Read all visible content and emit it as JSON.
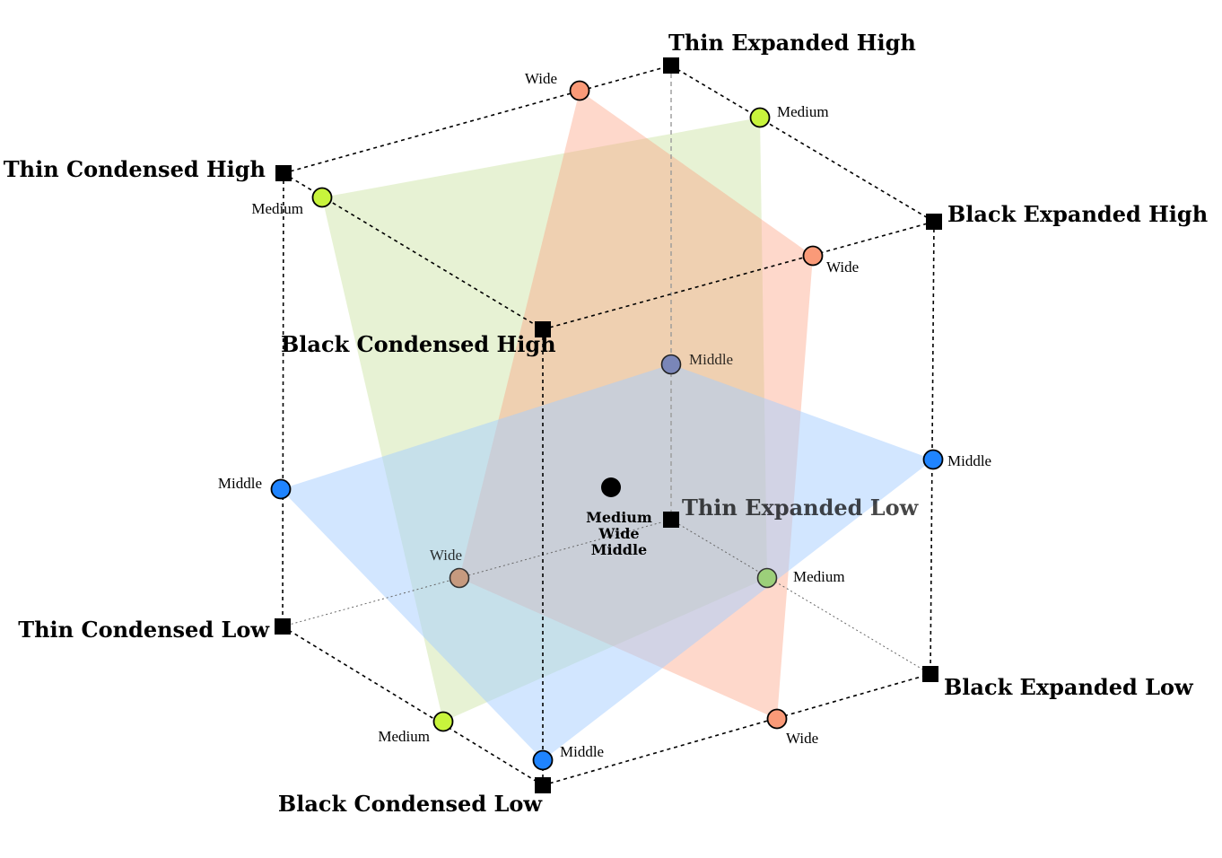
{
  "corners": {
    "thin_expanded_high": "Thin Expanded High",
    "thin_condensed_high": "Thin Condensed High",
    "black_expanded_high": "Black Expanded High",
    "black_condensed_high": "Black Condensed High",
    "thin_expanded_low": "Thin Expanded Low",
    "thin_condensed_low": "Thin Condensed Low",
    "black_expanded_low": "Black Expanded Low",
    "black_condensed_low": "Black Condensed Low"
  },
  "axis_points": {
    "wide": "Wide",
    "medium": "Medium",
    "middle": "Middle"
  },
  "center_labels": [
    "Medium",
    "Wide",
    "Middle"
  ],
  "colors": {
    "wide_point": "#fa9a78",
    "medium_point": "#c8f43c",
    "middle_point": "#1f84ff",
    "wide_plane": "#fca487",
    "medium_plane": "#d6e9b8",
    "middle_plane": "#a8d0ff"
  }
}
